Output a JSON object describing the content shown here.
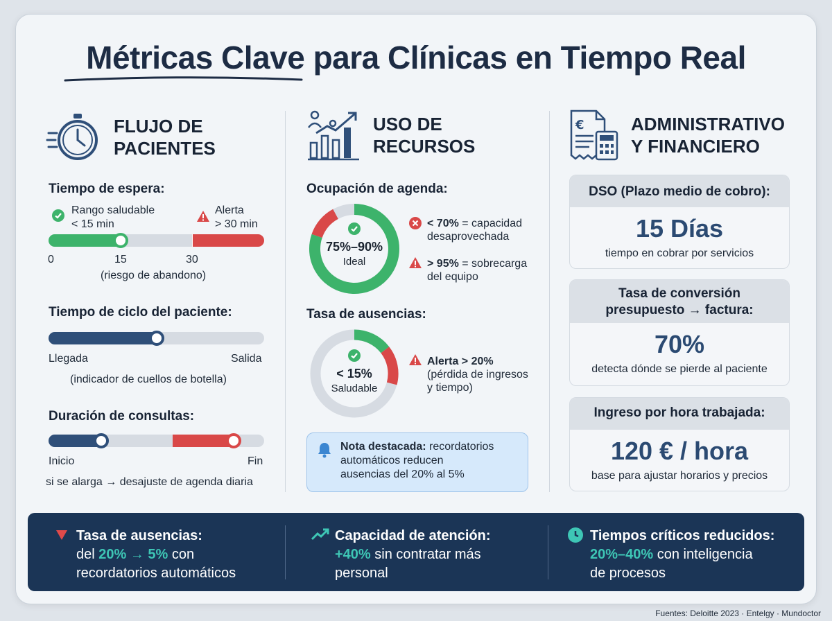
{
  "title": "Métricas Clave para Clínicas en Tiempo Real",
  "colors": {
    "green": "#3db36b",
    "red": "#d94848",
    "navy": "#2f4f79",
    "grey": "#d6dbe2",
    "teal": "#3ec6b5"
  },
  "flujo": {
    "heading_1": "FLUJO DE",
    "heading_2": "PACIENTES",
    "icon": "stopwatch-icon",
    "espera": {
      "label": "Tiempo de espera:",
      "healthy_1": "Rango saludable",
      "healthy_2": "< 15 min",
      "alert_1": "Alerta",
      "alert_2": "> 30 min",
      "tick_0": "0",
      "tick_15": "15",
      "tick_30": "30",
      "note": "(riesgo de abandono)",
      "marker_value": 15
    },
    "ciclo": {
      "label": "Tiempo de ciclo del paciente:",
      "start": "Llegada",
      "end": "Salida",
      "note": "(indicador de cuellos de botella)",
      "progress": 0.5
    },
    "duracion": {
      "label": "Duración de consultas:",
      "start": "Inicio",
      "end": "Fin",
      "note": "si se alarga → desajuste de agenda diaria"
    }
  },
  "recursos": {
    "heading_1": "USO DE",
    "heading_2": "RECURSOS",
    "icon": "growth-chart-icon",
    "ocupacion": {
      "label": "Ocupación de agenda:",
      "center_value": "75%–90%",
      "center_label": "Ideal",
      "low_bold": "< 70%",
      "low_text": " = capacidad",
      "low_text_2": "desaprovechada",
      "high_bold": "> 95%",
      "high_text": " = sobrecarga",
      "high_text_2": "del equipo"
    },
    "ausencias": {
      "label": "Tasa de ausencias:",
      "center_value": "< 15%",
      "center_label": "Saludable",
      "alert_bold": "Alerta > 20%",
      "alert_text_1": "(pérdida de ingresos",
      "alert_text_2": "y tiempo)"
    },
    "note": {
      "bold": "Nota destacada:",
      "text_1": " recordatorios",
      "text_2": "automáticos reducen",
      "text_3": "ausencias del 20% al 5%"
    }
  },
  "admin": {
    "heading_1": "ADMINISTRATIVO",
    "heading_2": "Y FINANCIERO",
    "icon": "invoice-calculator-icon",
    "dso": {
      "header": "DSO (Plazo medio de cobro):",
      "value": "15 Días",
      "desc": "tiempo en cobrar por servicios"
    },
    "conversion": {
      "header_1": "Tasa de conversión",
      "header_2": "presupuesto → factura:",
      "value": "70%",
      "desc": "detecta dónde se pierde al paciente"
    },
    "ingreso": {
      "header": "Ingreso por hora trabajada:",
      "value": "120 € / hora",
      "desc": "base para ajustar horarios y precios"
    }
  },
  "footer": {
    "col1": {
      "title": "Tasa de ausencias:",
      "pre": "del ",
      "hl": "20% → 5%",
      "post": " con",
      "line2": "recordatorios automáticos"
    },
    "col2": {
      "title": "Capacidad de atención:",
      "hl": "+40%",
      "post": " sin contratar más",
      "line2": "personal"
    },
    "col3": {
      "title": "Tiempos críticos reducidos:",
      "hl": "20%–40%",
      "post": " con inteligencia",
      "line2": "de procesos"
    }
  },
  "source": "Fuentes: Deloitte 2023 · Entelgy · Mundoctor"
}
